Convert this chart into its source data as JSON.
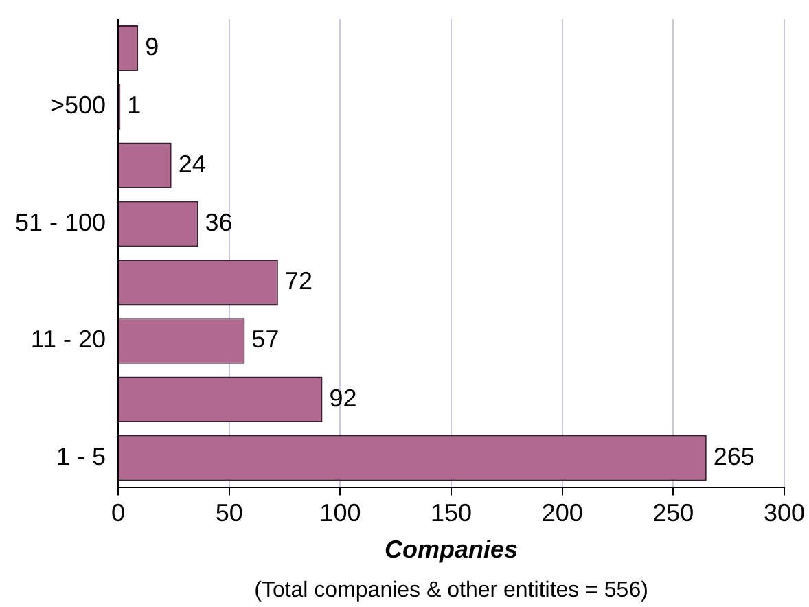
{
  "chart_data": {
    "type": "bar",
    "orientation": "horizontal",
    "xlabel": "Companies",
    "annotations": [
      "(Total companies & other entitites = 556)"
    ],
    "categories": [
      null,
      ">500",
      null,
      "51 - 100",
      null,
      "11 - 20",
      null,
      "1 - 5"
    ],
    "values": [
      9,
      1,
      24,
      36,
      72,
      57,
      92,
      265
    ],
    "color": "#b0698f",
    "xlim": [
      0,
      300
    ],
    "xticks": [
      0,
      50,
      100,
      150,
      200,
      250,
      300
    ],
    "grid": "x",
    "data_labels": true,
    "legend": false
  }
}
